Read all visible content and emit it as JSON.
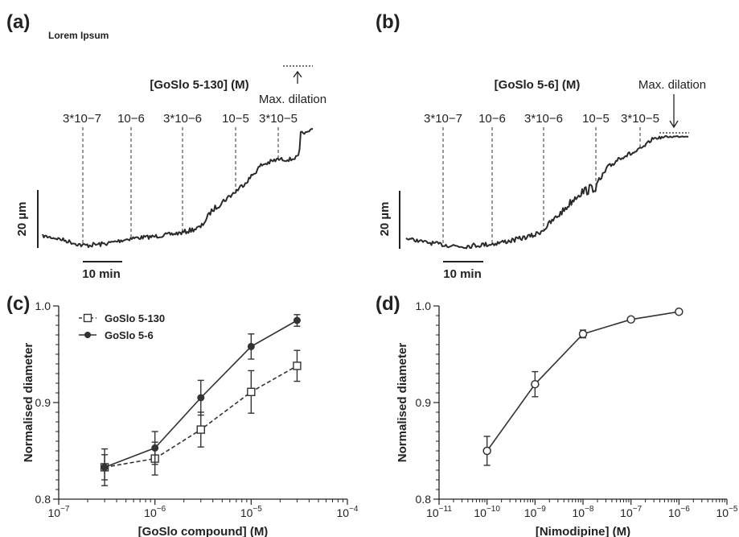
{
  "panels": {
    "a": {
      "letter": "(a)",
      "subtitle": "Lorem Ipsum"
    },
    "b": {
      "letter": "(b)"
    },
    "c": {
      "letter": "(c)"
    },
    "d": {
      "letter": "(d)"
    }
  },
  "traces": {
    "a": {
      "title": "[GoSlo 5-130] (M)",
      "max_label": "Max. dilation",
      "scale_y": "20 µm",
      "scale_x": "10 min",
      "concentrations": [
        "3*10−7",
        "10−6",
        "3*10−6",
        "10−5",
        "3*10−5"
      ]
    },
    "b": {
      "title": "[GoSlo 5-6] (M)",
      "max_label": "Max. dilation",
      "scale_y": "20 µm",
      "scale_x": "10 min",
      "concentrations": [
        "3*10−7",
        "10−6",
        "3*10−6",
        "10−5",
        "3*10−5"
      ]
    }
  },
  "chart_data": [
    {
      "type": "line",
      "panel": "c",
      "xlabel": "[GoSlo compound] (M)",
      "ylabel": "Normalised diameter",
      "xscale": "log",
      "xlim": [
        1e-07,
        0.0001
      ],
      "ylim": [
        0.8,
        1.0
      ],
      "x_ticks": [
        {
          "base": "10",
          "exp": "−7"
        },
        {
          "base": "10",
          "exp": "−6"
        },
        {
          "base": "10",
          "exp": "−5"
        },
        {
          "base": "10",
          "exp": "−4"
        }
      ],
      "y_ticks": [
        "0.8",
        "0.9",
        "1.0"
      ],
      "legend_position": "top-left",
      "series": [
        {
          "name": "GoSlo 5-130",
          "marker": "open-square",
          "line": "dashed",
          "x": [
            3e-07,
            1e-06,
            3e-06,
            1e-05,
            3e-05
          ],
          "y": [
            0.833,
            0.842,
            0.872,
            0.911,
            0.938
          ],
          "err": [
            0.019,
            0.017,
            0.018,
            0.022,
            0.016
          ]
        },
        {
          "name": "GoSlo 5-6",
          "marker": "filled-circle",
          "line": "solid",
          "x": [
            3e-07,
            1e-06,
            3e-06,
            1e-05,
            3e-05
          ],
          "y": [
            0.833,
            0.853,
            0.905,
            0.958,
            0.985
          ],
          "err": [
            0.013,
            0.017,
            0.018,
            0.013,
            0.006
          ]
        }
      ]
    },
    {
      "type": "line",
      "panel": "d",
      "xlabel": "[Nimodipine] (M)",
      "ylabel": "Normalised diameter",
      "xscale": "log",
      "xlim": [
        1e-11,
        1e-05
      ],
      "ylim": [
        0.8,
        1.0
      ],
      "x_ticks": [
        {
          "base": "10",
          "exp": "−11"
        },
        {
          "base": "10",
          "exp": "−10"
        },
        {
          "base": "10",
          "exp": "−9"
        },
        {
          "base": "10",
          "exp": "−8"
        },
        {
          "base": "10",
          "exp": "−7"
        },
        {
          "base": "10",
          "exp": "−6"
        },
        {
          "base": "10",
          "exp": "−5"
        }
      ],
      "y_ticks": [
        "0.8",
        "0.9",
        "1.0"
      ],
      "series": [
        {
          "marker": "open-circle",
          "line": "solid",
          "x": [
            1e-10,
            1e-09,
            1e-08,
            1e-07,
            1e-06
          ],
          "y": [
            0.85,
            0.919,
            0.971,
            0.986,
            0.994
          ],
          "err": [
            0.015,
            0.013,
            0.004,
            0.002,
            0.002
          ]
        }
      ]
    }
  ]
}
